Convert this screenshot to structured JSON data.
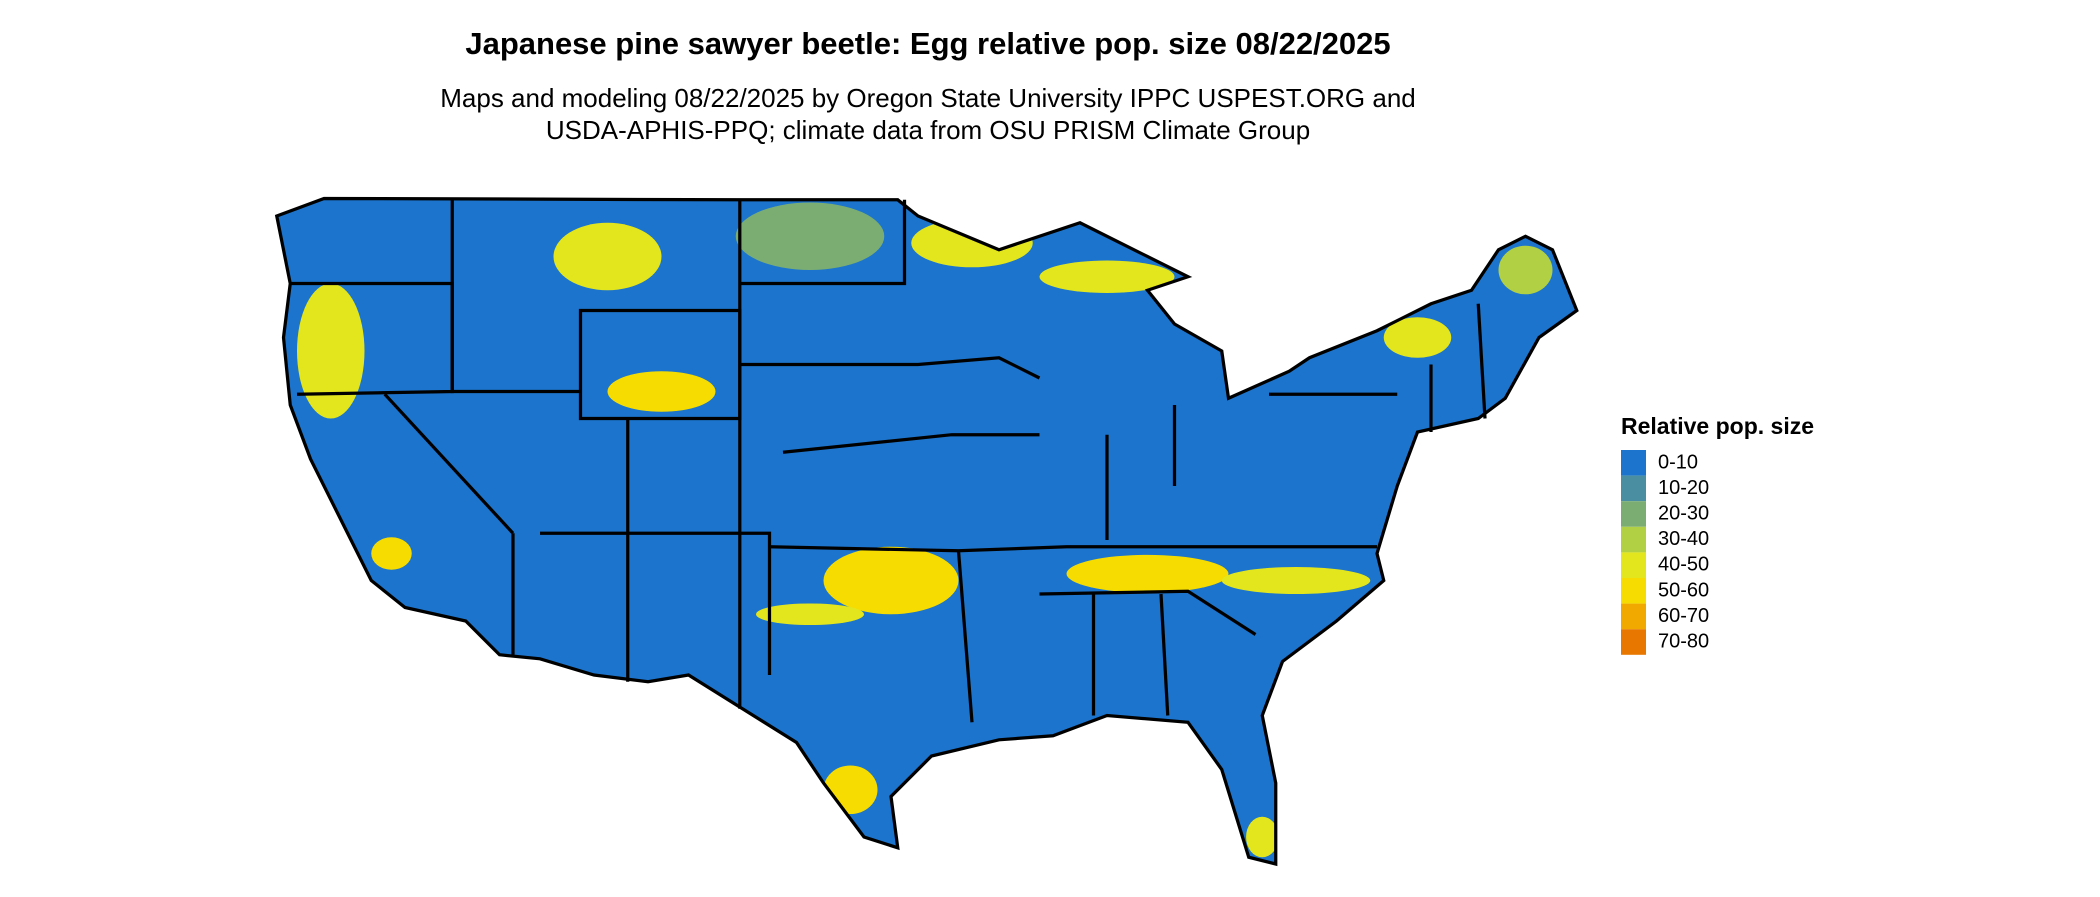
{
  "header": {
    "title": "Japanese pine sawyer beetle: Egg relative pop. size 08/22/2025",
    "subtitle": [
      "Maps and modeling 08/22/2025 by Oregon State University IPPC USPEST.ORG and",
      "USDA-APHIS-PPQ; climate data from OSU PRISM Climate Group"
    ]
  },
  "legend": {
    "title": "Relative pop. size",
    "items": [
      {
        "label": "0-10",
        "color": "#1c74cc"
      },
      {
        "label": "10-20",
        "color": "#4a8ea2"
      },
      {
        "label": "20-30",
        "color": "#7bad73"
      },
      {
        "label": "30-40",
        "color": "#b2d043"
      },
      {
        "label": "40-50",
        "color": "#e3e61c"
      },
      {
        "label": "50-60",
        "color": "#f6dc00"
      },
      {
        "label": "60-70",
        "color": "#f1a900"
      },
      {
        "label": "70-80",
        "color": "#e87700"
      }
    ]
  }
}
